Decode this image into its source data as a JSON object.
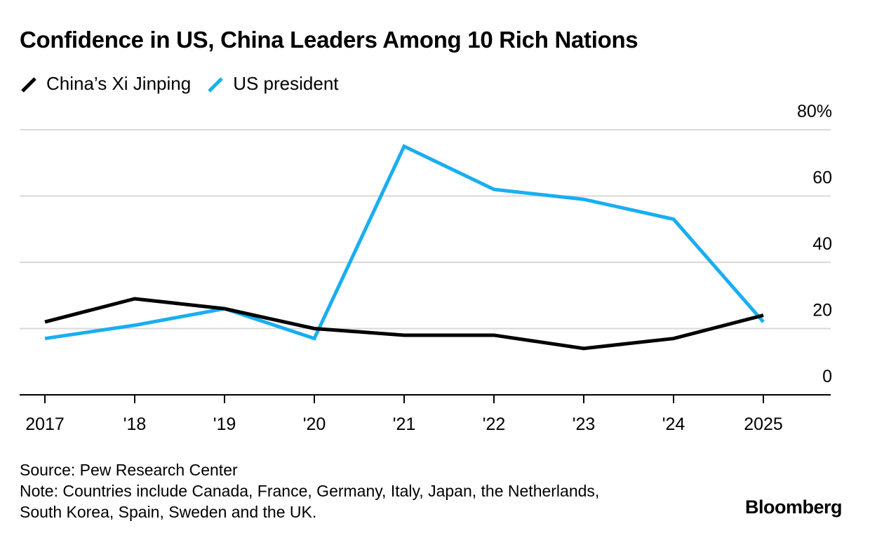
{
  "title": "Confidence in US, China Leaders Among 10 Rich Nations",
  "colors": {
    "xi": "#000000",
    "us": "#1aaef0",
    "grid": "#d9d9d9",
    "axis": "#000000"
  },
  "chart_data": {
    "type": "line",
    "title": "Confidence in US, China Leaders Among 10 Rich Nations",
    "xlabel": "",
    "ylabel": "",
    "x": [
      2017,
      2018,
      2019,
      2020,
      2021,
      2022,
      2023,
      2024,
      2025
    ],
    "x_tick_labels": [
      "2017",
      "'18",
      "'19",
      "'20",
      "'21",
      "'22",
      "'23",
      "'24",
      "2025"
    ],
    "y_tick_labels": [
      "0",
      "20",
      "40",
      "60",
      "80%"
    ],
    "y_ticks": [
      0,
      20,
      40,
      60,
      80
    ],
    "ylim": [
      0,
      80
    ],
    "grid": true,
    "legend_position": "top-left",
    "series": [
      {
        "name": "China’s Xi Jinping",
        "color": "#000000",
        "values": [
          22,
          29,
          26,
          20,
          18,
          18,
          14,
          17,
          24
        ]
      },
      {
        "name": "US president",
        "color": "#1aaef0",
        "values": [
          17,
          21,
          26,
          17,
          75,
          62,
          59,
          53,
          22
        ]
      }
    ]
  },
  "footer": {
    "source": "Source: Pew Research Center",
    "note": "Note: Countries include Canada, France, Germany, Italy, Japan, the Netherlands, South Korea, Spain, Sweden and the UK."
  },
  "brand": "Bloomberg"
}
